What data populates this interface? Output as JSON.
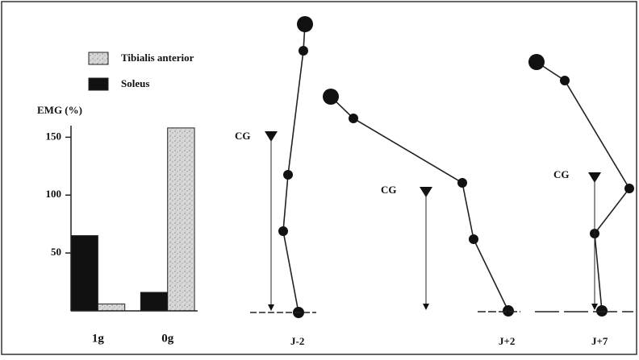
{
  "chart_data": {
    "type": "bar",
    "y_label": "EMG (%)",
    "categories": [
      "1g",
      "0g"
    ],
    "series": [
      {
        "name": "Soleus",
        "color": "#111111",
        "values": [
          65,
          16
        ]
      },
      {
        "name": "Tibialis anterior",
        "color": "speckle",
        "values": [
          6,
          158
        ]
      }
    ],
    "ylim": [
      0,
      160
    ],
    "yticks": [
      50,
      100,
      150
    ]
  },
  "postures": [
    {
      "label": "J-2",
      "marker": "CG"
    },
    {
      "label": "J+2",
      "marker": "CG"
    },
    {
      "label": "J+7",
      "marker": "CG"
    }
  ]
}
